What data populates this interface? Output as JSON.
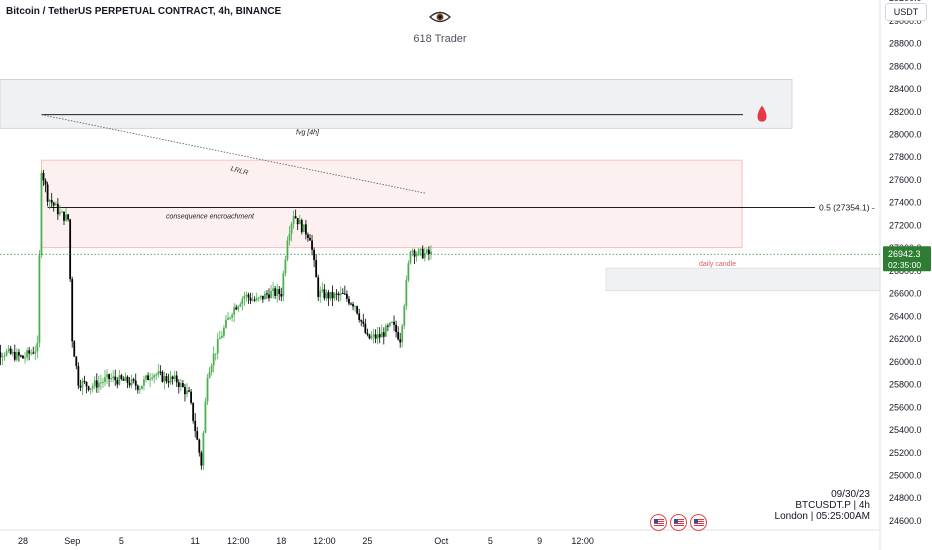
{
  "header": {
    "symbol_title": "Bitcoin / TetherUS PERPETUAL CONTRACT, 4h, BINANCE",
    "brand_name": "618 Trader",
    "currency_button": "USDT"
  },
  "chart_data": {
    "type": "candlestick",
    "symbol": "BTCUSDT.P",
    "interval": "4h",
    "ylim": [
      24500,
      29300
    ],
    "y_ticks": [
      24600,
      24800,
      25000,
      25200,
      25400,
      25600,
      25800,
      26000,
      26200,
      26400,
      26600,
      26800,
      27000,
      27200,
      27400,
      27600,
      27800,
      28000,
      28200,
      28400,
      28600,
      28800,
      29000,
      29200
    ],
    "y_tick_labels": [
      "24600.0",
      "24800.0",
      "25000.0",
      "25200.0",
      "25400.0",
      "25600.0",
      "25800.0",
      "26000.0",
      "26200.0",
      "26400.0",
      "26600.0",
      "26800.0",
      "27000.0",
      "27200.0",
      "27400.0",
      "27600.0",
      "27800.0",
      "28000.0",
      "28200.0",
      "28400.0",
      "28600.0",
      "28800.0",
      "29000.0",
      "29200.0"
    ],
    "x_tick_labels": [
      "28",
      "Sep",
      "5",
      "11",
      "12:00",
      "18",
      "12:00",
      "25",
      "Oct",
      "5",
      "9",
      "12:00"
    ],
    "x_tick_dates": [
      "2023-08-28",
      "2023-09-01",
      "2023-09-05",
      "2023-09-11",
      "2023-09-14 12:00",
      "2023-09-18",
      "2023-09-21 12:00",
      "2023-09-25",
      "2023-10-01",
      "2023-10-05",
      "2023-10-09",
      "2023-10-12 12:00"
    ],
    "first_bar": "2023-08-25",
    "last_bar": "2023-09-30 04:00",
    "keyframes": [
      [
        "2023-08-25 00:00",
        26060
      ],
      [
        "2023-08-26 12:00",
        26080
      ],
      [
        "2023-08-28 00:00",
        26030
      ],
      [
        "2023-08-29 04:00",
        26120
      ],
      [
        "2023-08-29 12:00",
        27700
      ],
      [
        "2023-08-30 00:00",
        27450
      ],
      [
        "2023-08-31 00:00",
        27300
      ],
      [
        "2023-08-31 16:00",
        27250
      ],
      [
        "2023-09-01 00:00",
        26200
      ],
      [
        "2023-09-01 12:00",
        25820
      ],
      [
        "2023-09-02 12:00",
        25780
      ],
      [
        "2023-09-04 00:00",
        25850
      ],
      [
        "2023-09-05 12:00",
        25820
      ],
      [
        "2023-09-06 12:00",
        25780
      ],
      [
        "2023-09-07 12:00",
        25900
      ],
      [
        "2023-09-08 12:00",
        25850
      ],
      [
        "2023-09-09 12:00",
        25830
      ],
      [
        "2023-09-10 12:00",
        25700
      ],
      [
        "2023-09-11 12:00",
        25100
      ],
      [
        "2023-09-12 00:00",
        25900
      ],
      [
        "2023-09-13 00:00",
        26200
      ],
      [
        "2023-09-14 00:00",
        26450
      ],
      [
        "2023-09-15 00:00",
        26580
      ],
      [
        "2023-09-16 00:00",
        26530
      ],
      [
        "2023-09-17 00:00",
        26600
      ],
      [
        "2023-09-18 00:00",
        26600
      ],
      [
        "2023-09-18 12:00",
        27100
      ],
      [
        "2023-09-19 00:00",
        27300
      ],
      [
        "2023-09-19 16:00",
        27180
      ],
      [
        "2023-09-20 08:00",
        27100
      ],
      [
        "2023-09-21 00:00",
        26600
      ],
      [
        "2023-09-22 00:00",
        26570
      ],
      [
        "2023-09-23 00:00",
        26580
      ],
      [
        "2023-09-24 00:00",
        26500
      ],
      [
        "2023-09-25 00:00",
        26200
      ],
      [
        "2023-09-26 00:00",
        26220
      ],
      [
        "2023-09-27 00:00",
        26320
      ],
      [
        "2023-09-27 16:00",
        26200
      ],
      [
        "2023-09-28 12:00",
        27000
      ],
      [
        "2023-09-29 00:00",
        26950
      ],
      [
        "2023-09-30 04:00",
        26942
      ]
    ],
    "annotations": {
      "fvg_zone": {
        "low": 28050,
        "high": 28480,
        "label": "fvg [4h]"
      },
      "fvg_line": {
        "value": 28170
      },
      "premium_zone": {
        "low": 27000,
        "high": 27770,
        "from": "2023-08-29 12:00",
        "to": "2023-10-05 12:00"
      },
      "consequence_line": {
        "value": 27354.1,
        "label": "consequence encroachment"
      },
      "level_label": "0.5 (27354.1)",
      "lrlr_label": "LRLR",
      "daily_candle_box": {
        "low": 26620,
        "high": 26820,
        "label": "daily candle"
      },
      "current_price": "26942.3",
      "countdown": "02:35:00"
    },
    "colors": {
      "up": "#26a69a",
      "candle_up": "#4caf50",
      "down": "#000000",
      "price_tag": "#2e7d32",
      "zone_red": "#f44336",
      "drop": "#e53945"
    }
  },
  "footer_info": {
    "date": "09/30/23",
    "symbol_line": "BTCUSDT.P | 4h",
    "time_line": "London | 05:25:00AM"
  },
  "icons": [
    "eye-icon",
    "blood-drop-icon",
    "us-flag-icon"
  ]
}
